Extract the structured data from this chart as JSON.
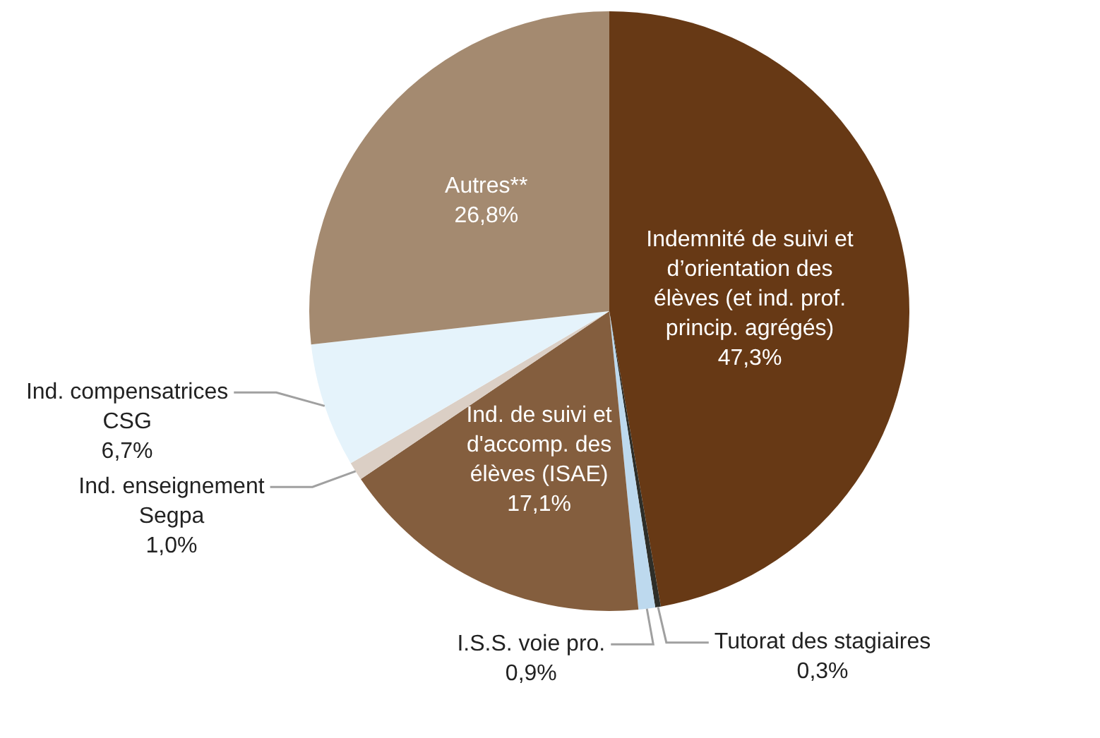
{
  "chart_data": {
    "type": "pie",
    "categories": [
      "Indemnité de suivi et d’orientation des élèves (et ind. prof. princip. agrégés)",
      "Tutorat des stagiaires",
      "I.S.S. voie pro.",
      "Ind. de suivi et d'accomp. des élèves (ISAE)",
      "Ind. enseignement Segpa",
      "Ind. compensatrices CSG",
      "Autres**"
    ],
    "values": [
      47.3,
      0.3,
      0.9,
      17.1,
      1.0,
      6.7,
      26.8
    ],
    "value_labels": [
      "47,3%",
      "0,3%",
      "0,9%",
      "17,1%",
      "1,0%",
      "6,7%",
      "26,8%"
    ],
    "colors": [
      "#673915",
      "#2e2e28",
      "#bdd9ee",
      "#845e3e",
      "#dbcfc5",
      "#e5f3fb",
      "#a48a70"
    ],
    "legend": false
  }
}
